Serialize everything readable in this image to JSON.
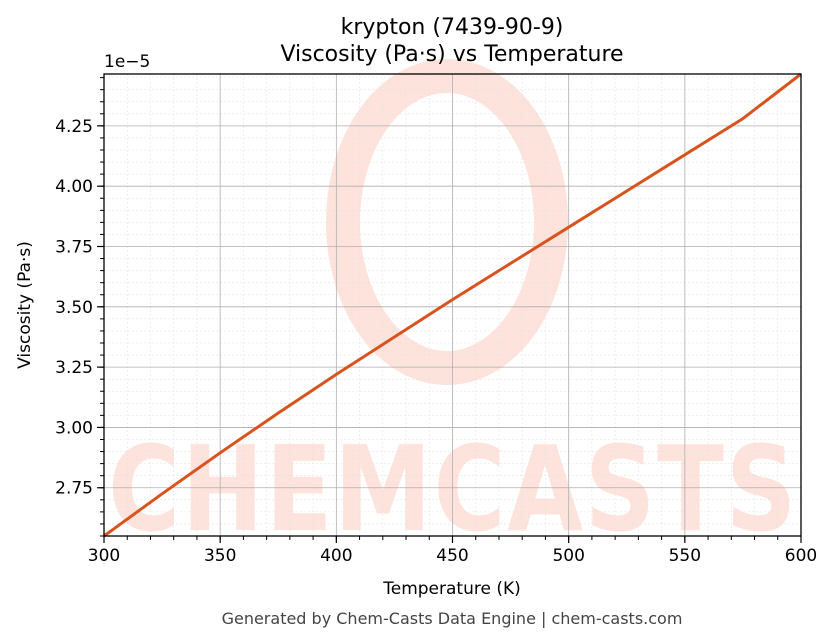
{
  "chart_data": {
    "type": "line",
    "title": "krypton (7439-90-9)",
    "subtitle": "Viscosity (Pa·s) vs Temperature",
    "xlabel": "Temperature (K)",
    "ylabel": "Viscosity (Pa·s)",
    "y_offset_label": "1e−5",
    "xlim": [
      300,
      600
    ],
    "ylim": [
      2.55,
      4.465
    ],
    "x_ticks": [
      300,
      350,
      400,
      450,
      500,
      550,
      600
    ],
    "x_tick_labels": [
      "300",
      "350",
      "400",
      "450",
      "500",
      "550",
      "600"
    ],
    "y_ticks": [
      2.75,
      3.0,
      3.25,
      3.5,
      3.75,
      4.0,
      4.25
    ],
    "y_tick_labels": [
      "2.75",
      "3.00",
      "3.25",
      "3.50",
      "3.75",
      "4.00",
      "4.25"
    ],
    "grid": true,
    "minor_grid": true,
    "legend": "none",
    "series": [
      {
        "color": "#d9531e",
        "x": [
          300,
          325,
          350,
          375,
          400,
          425,
          450,
          475,
          500,
          525,
          550,
          575,
          600
        ],
        "y": [
          2.55,
          2.725,
          2.895,
          3.06,
          3.22,
          3.375,
          3.53,
          3.68,
          3.83,
          3.98,
          4.13,
          4.28,
          4.465
        ]
      }
    ]
  },
  "watermark": {
    "text": "CHEMCASTS",
    "color": "#fde3dc"
  },
  "footer": {
    "text": "Generated by Chem-Casts Data Engine | chem-casts.com"
  }
}
